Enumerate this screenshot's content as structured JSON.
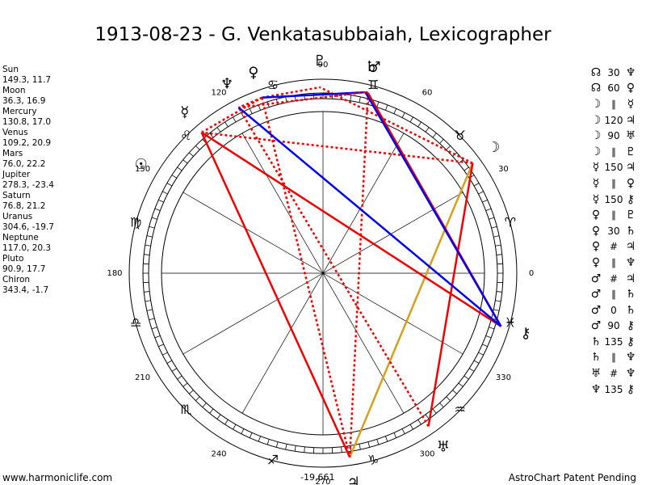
{
  "title": "1913-08-23 - G. Venkatasubbaiah, Lexicographer",
  "footer": {
    "left": "www.harmoniclife.com",
    "right": "AstroChart Patent Pending",
    "bottom_value": "-19,661"
  },
  "planets": [
    {
      "name": "Sun",
      "value": "149.3, 11.7",
      "glyph": "☉",
      "lon": 149.3
    },
    {
      "name": "Moon",
      "value": "36.3, 16.9",
      "glyph": "☽",
      "lon": 36.3
    },
    {
      "name": "Mercury",
      "value": "130.8, 17.0",
      "glyph": "☿",
      "lon": 130.8
    },
    {
      "name": "Venus",
      "value": "109.2, 20.9",
      "glyph": "♀",
      "lon": 109.2
    },
    {
      "name": "Mars",
      "value": "76.0, 22.2",
      "glyph": "♂",
      "lon": 76.0
    },
    {
      "name": "Jupiter",
      "value": "278.3, -23.4",
      "glyph": "♃",
      "lon": 278.3
    },
    {
      "name": "Saturn",
      "value": "76.8, 21.2",
      "glyph": "♄",
      "lon": 76.8
    },
    {
      "name": "Uranus",
      "value": "304.6, -19.7",
      "glyph": "♅",
      "lon": 304.6
    },
    {
      "name": "Neptune",
      "value": "117.0, 20.3",
      "glyph": "♆",
      "lon": 117.0
    },
    {
      "name": "Pluto",
      "value": "90.9, 17.7",
      "glyph": "♇",
      "lon": 90.9
    },
    {
      "name": "Chiron",
      "value": "343.4, -1.7",
      "glyph": "⚷",
      "lon": 343.4
    }
  ],
  "node_glyph": "☊",
  "aspects": [
    {
      "p1": "☊",
      "aspect": "30",
      "p2": "♆"
    },
    {
      "p1": "☊",
      "aspect": "60",
      "p2": "♀"
    },
    {
      "p1": "☽",
      "aspect": "∥",
      "p2": "☿"
    },
    {
      "p1": "☽",
      "aspect": "120",
      "p2": "♃"
    },
    {
      "p1": "☽",
      "aspect": "90",
      "p2": "♅"
    },
    {
      "p1": "☽",
      "aspect": "∥",
      "p2": "♇"
    },
    {
      "p1": "☿",
      "aspect": "150",
      "p2": "♃"
    },
    {
      "p1": "☿",
      "aspect": "∥",
      "p2": "♀"
    },
    {
      "p1": "☿",
      "aspect": "150",
      "p2": "⚷"
    },
    {
      "p1": "♀",
      "aspect": "∥",
      "p2": "♇"
    },
    {
      "p1": "♀",
      "aspect": "30",
      "p2": "♄"
    },
    {
      "p1": "♀",
      "aspect": "#",
      "p2": "♃"
    },
    {
      "p1": "♀",
      "aspect": "∥",
      "p2": "♆"
    },
    {
      "p1": "♂",
      "aspect": "#",
      "p2": "♃"
    },
    {
      "p1": "♂",
      "aspect": "∥",
      "p2": "♄"
    },
    {
      "p1": "♂",
      "aspect": "0",
      "p2": "♄"
    },
    {
      "p1": "♂",
      "aspect": "90",
      "p2": "⚷"
    },
    {
      "p1": "♄",
      "aspect": "135",
      "p2": "⚷"
    },
    {
      "p1": "♄",
      "aspect": "∥",
      "p2": "♆"
    },
    {
      "p1": "♅",
      "aspect": "#",
      "p2": "♆"
    },
    {
      "p1": "♆",
      "aspect": "135",
      "p2": "⚷"
    }
  ],
  "degree_labels": [
    "0",
    "30",
    "60",
    "90",
    "120",
    "150",
    "180",
    "210",
    "240",
    "270",
    "300",
    "330"
  ],
  "signs": [
    "♈",
    "♉",
    "♊",
    "♋",
    "♌",
    "♍",
    "♎",
    "♏",
    "♐",
    "♑",
    "♒",
    "♓"
  ],
  "colors": {
    "background": "#ffffff",
    "blue_aspect": "#0000ee",
    "red_aspect": "#ee0000",
    "gold_aspect": "#d4a020"
  }
}
